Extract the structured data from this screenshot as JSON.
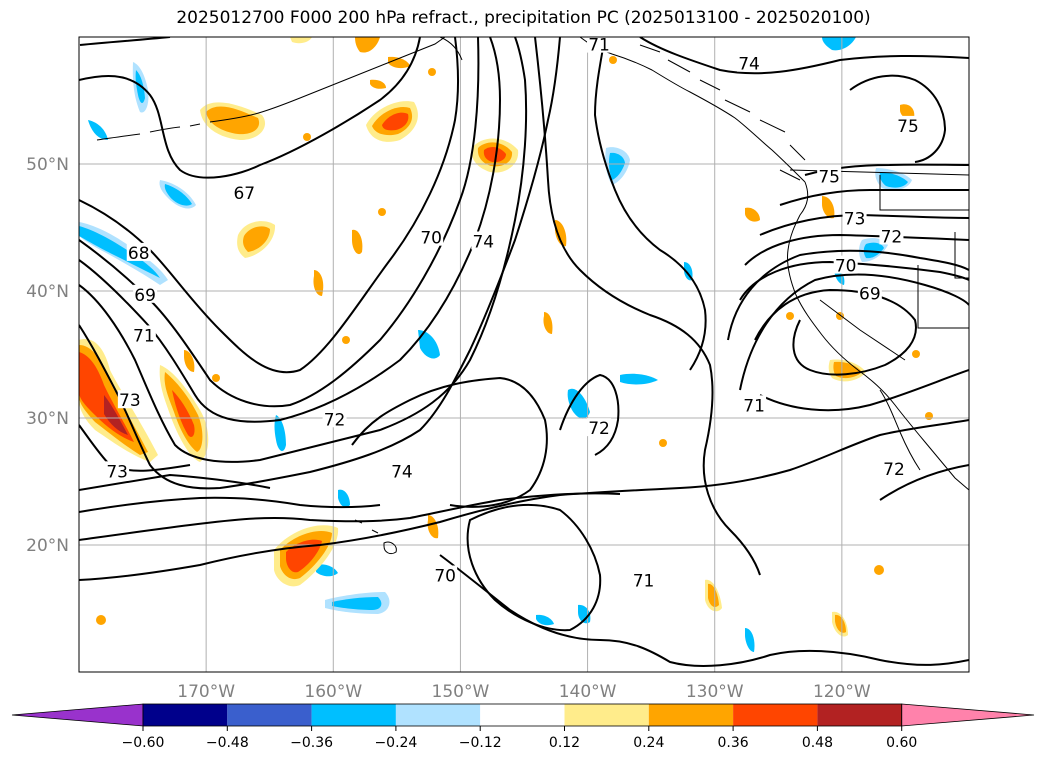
{
  "title": "2025012700 F000 200 hPa refract., precipitation PC (2025013100 - 2025020100)",
  "map": {
    "lat_labels": [
      {
        "text": "50°N",
        "lat": 50
      },
      {
        "text": "40°N",
        "lat": 40
      },
      {
        "text": "30°N",
        "lat": 30
      },
      {
        "text": "20°N",
        "lat": 20
      }
    ],
    "lon_labels": [
      {
        "text": "170°W",
        "lon": -170
      },
      {
        "text": "160°W",
        "lon": -160
      },
      {
        "text": "150°W",
        "lon": -150
      },
      {
        "text": "140°W",
        "lon": -140
      },
      {
        "text": "130°W",
        "lon": -130
      },
      {
        "text": "120°W",
        "lon": -120
      }
    ],
    "contour_labels": [
      {
        "text": "67",
        "lon": -167,
        "lat": 47.7
      },
      {
        "text": "68",
        "lon": -175.3,
        "lat": 43.0
      },
      {
        "text": "69",
        "lon": -174.8,
        "lat": 39.7
      },
      {
        "text": "71",
        "lon": -174.9,
        "lat": 36.5
      },
      {
        "text": "73",
        "lon": -176,
        "lat": 31.4
      },
      {
        "text": "73",
        "lon": -177,
        "lat": 25.8
      },
      {
        "text": "70",
        "lon": -152.3,
        "lat": 44.2
      },
      {
        "text": "74",
        "lon": -148.2,
        "lat": 43.9
      },
      {
        "text": "72",
        "lon": -159.9,
        "lat": 29.9
      },
      {
        "text": "74",
        "lon": -154.6,
        "lat": 25.8
      },
      {
        "text": "70",
        "lon": -151.2,
        "lat": 17.6
      },
      {
        "text": "71",
        "lon": -135.6,
        "lat": 17.2
      },
      {
        "text": "72",
        "lon": -139.1,
        "lat": 29.2
      },
      {
        "text": "71",
        "lon": -126.9,
        "lat": 31.0
      },
      {
        "text": "72",
        "lon": -115.9,
        "lat": 26.0
      },
      {
        "text": "69",
        "lon": -117.8,
        "lat": 39.8
      },
      {
        "text": "70",
        "lon": -119.7,
        "lat": 42.0
      },
      {
        "text": "72",
        "lon": -116.1,
        "lat": 44.3
      },
      {
        "text": "73",
        "lon": -119.0,
        "lat": 45.7
      },
      {
        "text": "75",
        "lon": -121.0,
        "lat": 49.0
      },
      {
        "text": "74",
        "lon": -127.3,
        "lat": 57.9
      },
      {
        "text": "75",
        "lon": -114.8,
        "lat": 53.0
      },
      {
        "text": "71",
        "lon": -139.1,
        "lat": 59.4
      }
    ]
  },
  "colorbar": {
    "levels": [
      "−0.60",
      "−0.48",
      "−0.36",
      "−0.24",
      "−0.12",
      "0.12",
      "0.24",
      "0.36",
      "0.48",
      "0.60"
    ],
    "colors": [
      "#9932CC",
      "#00008B",
      "#3A5FCD",
      "#00BFFF",
      "#B0E2FF",
      "#FFFFFF",
      "#FFEC8B",
      "#FFA500",
      "#FF4500",
      "#B22222",
      "#FF82AB"
    ]
  },
  "shading_colors": {
    "neg_strong": "#00BFFF",
    "neg_weak": "#B0E2FF",
    "pos_weak": "#FFEC8B",
    "pos_mid": "#FFA500",
    "pos_strong": "#FF4500",
    "pos_max": "#B22222"
  }
}
